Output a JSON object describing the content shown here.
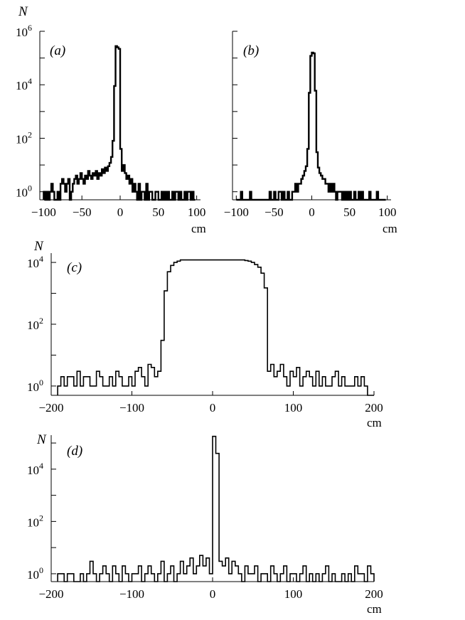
{
  "chart_data": [
    {
      "id": "a",
      "type": "histogram",
      "panel_label": "(a)",
      "ylabel": "N",
      "xlabel": "cm",
      "y_scale": "log",
      "ylim": [
        0.5,
        1000000
      ],
      "xlim": [
        -105,
        105
      ],
      "x_ticks": [
        -100,
        -50,
        0,
        50,
        100
      ],
      "x_tick_labels": [
        "−100",
        "−50",
        "0",
        "50",
        "100"
      ],
      "y_ticks": [
        1,
        100,
        10000,
        1000000
      ],
      "y_tick_labels": [
        {
          "base": "10",
          "exp": "0"
        },
        {
          "base": "10",
          "exp": "2"
        },
        {
          "base": "10",
          "exp": "4"
        },
        {
          "base": "10",
          "exp": "6"
        }
      ],
      "bin_width": 2,
      "bins_x": [
        -100,
        -98,
        -96,
        -94,
        -92,
        -90,
        -88,
        -86,
        -84,
        -82,
        -80,
        -78,
        -76,
        -74,
        -72,
        -70,
        -68,
        -66,
        -64,
        -62,
        -60,
        -58,
        -56,
        -54,
        -52,
        -50,
        -48,
        -46,
        -44,
        -42,
        -40,
        -38,
        -36,
        -34,
        -32,
        -30,
        -28,
        -26,
        -24,
        -22,
        -20,
        -18,
        -16,
        -14,
        -12,
        -10,
        -8,
        -6,
        -4,
        -2,
        0,
        2,
        4,
        6,
        8,
        10,
        12,
        14,
        16,
        18,
        20,
        22,
        24,
        26,
        28,
        30,
        32,
        34,
        36,
        38,
        40,
        42,
        44,
        46,
        48,
        50,
        52,
        54,
        56,
        58,
        60,
        62,
        64,
        66,
        68,
        70,
        72,
        74,
        76,
        78,
        80,
        82,
        84,
        86,
        88,
        90,
        92,
        94,
        96
      ],
      "counts": [
        1,
        0,
        1,
        0,
        1,
        2,
        1,
        0,
        0,
        1,
        0,
        2,
        3,
        2,
        1,
        2,
        3,
        0,
        1,
        2,
        3,
        4,
        2,
        3,
        5,
        3,
        2,
        4,
        3,
        6,
        4,
        3,
        5,
        4,
        6,
        3,
        5,
        4,
        7,
        5,
        8,
        6,
        9,
        12,
        20,
        80,
        9000,
        280000,
        250000,
        220000,
        40,
        6,
        10,
        5,
        3,
        4,
        2,
        3,
        1,
        2,
        1,
        0,
        2,
        0,
        1,
        1,
        0,
        2,
        0,
        1,
        1,
        0,
        0,
        1,
        1,
        0,
        0,
        1,
        0,
        1,
        0,
        1,
        0,
        0,
        1,
        0,
        1,
        1,
        0,
        1,
        0,
        0,
        1,
        0,
        1,
        1,
        0,
        1,
        0
      ]
    },
    {
      "id": "b",
      "type": "histogram",
      "panel_label": "(b)",
      "ylabel": "",
      "xlabel": "cm",
      "y_scale": "log",
      "ylim": [
        0.5,
        1000000
      ],
      "xlim": [
        -105,
        105
      ],
      "x_ticks": [
        -100,
        -50,
        0,
        50,
        100
      ],
      "x_tick_labels": [
        "−100",
        "−50",
        "0",
        "50",
        "100"
      ],
      "y_ticks": [
        1,
        100,
        10000,
        1000000
      ],
      "y_tick_labels": [],
      "bin_width": 2,
      "bins_x": [
        -100,
        -98,
        -96,
        -94,
        -92,
        -90,
        -88,
        -86,
        -84,
        -82,
        -80,
        -78,
        -76,
        -74,
        -72,
        -70,
        -68,
        -66,
        -64,
        -62,
        -60,
        -58,
        -56,
        -54,
        -52,
        -50,
        -48,
        -46,
        -44,
        -42,
        -40,
        -38,
        -36,
        -34,
        -32,
        -30,
        -28,
        -26,
        -24,
        -22,
        -20,
        -18,
        -16,
        -14,
        -12,
        -10,
        -8,
        -6,
        -4,
        -2,
        0,
        2,
        4,
        6,
        8,
        10,
        12,
        14,
        16,
        18,
        20,
        22,
        24,
        26,
        28,
        30,
        32,
        34,
        36,
        38,
        40,
        42,
        44,
        46,
        48,
        50,
        52,
        54,
        56,
        58,
        60,
        62,
        64,
        66,
        68,
        70,
        72,
        74,
        76,
        78,
        80,
        82,
        84,
        86,
        88,
        90,
        92,
        94,
        96
      ],
      "counts": [
        0,
        0,
        0,
        1,
        0,
        0,
        0,
        0,
        0,
        1,
        0,
        0,
        0,
        0,
        0,
        0,
        0,
        0,
        0,
        0,
        0,
        0,
        1,
        0,
        0,
        1,
        0,
        0,
        1,
        1,
        0,
        1,
        0,
        0,
        1,
        0,
        0,
        1,
        1,
        2,
        1,
        2,
        2,
        3,
        4,
        6,
        9,
        40,
        5000,
        120000,
        160000,
        150000,
        6000,
        30,
        8,
        5,
        4,
        3,
        3,
        2,
        2,
        1,
        2,
        1,
        2,
        1,
        0,
        1,
        1,
        1,
        0,
        1,
        0,
        1,
        0,
        1,
        0,
        0,
        1,
        0,
        0,
        1,
        0,
        1,
        0,
        0,
        0,
        0,
        1,
        0,
        0,
        0,
        0,
        1,
        0,
        0,
        0,
        0,
        0
      ],
      "y_ticklabels_shown": false
    },
    {
      "id": "c",
      "type": "histogram",
      "panel_label": "(c)",
      "ylabel": "N",
      "xlabel": "cm",
      "y_scale": "log",
      "ylim": [
        0.5,
        20000
      ],
      "xlim": [
        -200,
        200
      ],
      "x_ticks": [
        -200,
        -100,
        0,
        100,
        200
      ],
      "x_tick_labels": [
        "−200",
        "−100",
        "0",
        "100",
        "200"
      ],
      "y_ticks": [
        1,
        100,
        10000
      ],
      "y_tick_labels": [
        {
          "base": "10",
          "exp": "0"
        },
        {
          "base": "10",
          "exp": "2"
        },
        {
          "base": "10",
          "exp": "4"
        }
      ],
      "bin_width": 4,
      "bins_x": [
        -192,
        -188,
        -184,
        -180,
        -176,
        -172,
        -168,
        -164,
        -160,
        -156,
        -152,
        -148,
        -144,
        -140,
        -136,
        -132,
        -128,
        -124,
        -120,
        -116,
        -112,
        -108,
        -104,
        -100,
        -96,
        -92,
        -88,
        -84,
        -80,
        -76,
        -72,
        -68,
        -64,
        -60,
        -56,
        -52,
        -48,
        -44,
        -40,
        -36,
        -32,
        -28,
        -24,
        -20,
        -16,
        -12,
        -8,
        -4,
        0,
        4,
        8,
        12,
        16,
        20,
        24,
        28,
        32,
        36,
        40,
        44,
        48,
        52,
        56,
        60,
        64,
        68,
        72,
        76,
        80,
        84,
        88,
        92,
        96,
        100,
        104,
        108,
        112,
        116,
        120,
        124,
        128,
        132,
        136,
        140,
        144,
        148,
        152,
        156,
        160,
        164,
        168,
        172,
        176,
        180,
        184,
        188,
        192,
        196
      ],
      "counts": [
        1,
        2,
        1,
        2,
        2,
        1,
        3,
        1,
        2,
        2,
        1,
        1,
        3,
        2,
        1,
        1,
        2,
        1,
        3,
        2,
        1,
        1,
        2,
        1,
        3,
        4,
        2,
        1,
        5,
        4,
        2,
        3,
        30,
        1200,
        5000,
        8000,
        10000,
        11000,
        12000,
        12000,
        12000,
        12000,
        12000,
        12000,
        12000,
        12000,
        12000,
        12000,
        12000,
        12000,
        12000,
        12000,
        12000,
        12000,
        12000,
        12000,
        12000,
        12000,
        11500,
        11000,
        10000,
        8500,
        7000,
        4500,
        1500,
        3,
        5,
        2,
        3,
        5,
        2,
        1,
        3,
        2,
        4,
        1,
        2,
        3,
        2,
        1,
        3,
        1,
        2,
        1,
        1,
        2,
        3,
        1,
        2,
        1,
        1,
        1,
        2,
        1,
        2,
        1
      ]
    },
    {
      "id": "d",
      "type": "histogram",
      "panel_label": "(d)",
      "ylabel": "N",
      "xlabel": "cm",
      "y_scale": "log",
      "ylim": [
        0.5,
        200000
      ],
      "xlim": [
        -200,
        200
      ],
      "x_ticks": [
        -200,
        -100,
        0,
        100,
        200
      ],
      "x_tick_labels": [
        "−200",
        "−100",
        "0",
        "100",
        "200"
      ],
      "y_ticks": [
        1,
        100,
        10000
      ],
      "y_tick_labels": [
        {
          "base": "10",
          "exp": "0"
        },
        {
          "base": "10",
          "exp": "2"
        },
        {
          "base": "10",
          "exp": "4"
        }
      ],
      "bin_width": 4,
      "bins_x": [
        -192,
        -188,
        -184,
        -180,
        -176,
        -172,
        -168,
        -164,
        -160,
        -156,
        -152,
        -148,
        -144,
        -140,
        -136,
        -132,
        -128,
        -124,
        -120,
        -116,
        -112,
        -108,
        -104,
        -100,
        -96,
        -92,
        -88,
        -84,
        -80,
        -76,
        -72,
        -68,
        -64,
        -60,
        -56,
        -52,
        -48,
        -44,
        -40,
        -36,
        -32,
        -28,
        -24,
        -20,
        -16,
        -12,
        -8,
        -4,
        0,
        4,
        8,
        12,
        16,
        20,
        24,
        28,
        32,
        36,
        40,
        44,
        48,
        52,
        56,
        60,
        64,
        68,
        72,
        76,
        80,
        84,
        88,
        92,
        96,
        100,
        104,
        108,
        112,
        116,
        120,
        124,
        128,
        132,
        136,
        140,
        144,
        148,
        152,
        156,
        160,
        164,
        168,
        172,
        176,
        180,
        184,
        188,
        192,
        196
      ],
      "counts": [
        1,
        1,
        0,
        1,
        1,
        0,
        0,
        1,
        0,
        1,
        3,
        1,
        0,
        1,
        2,
        1,
        0,
        2,
        1,
        0,
        2,
        1,
        0,
        1,
        1,
        2,
        0,
        1,
        2,
        1,
        0,
        1,
        3,
        0,
        1,
        2,
        0,
        1,
        3,
        1,
        2,
        4,
        1,
        2,
        5,
        2,
        4,
        1,
        180000,
        40000,
        3,
        2,
        4,
        1,
        3,
        2,
        1,
        0,
        2,
        1,
        1,
        2,
        0,
        1,
        1,
        0,
        2,
        1,
        0,
        1,
        2,
        0,
        1,
        1,
        0,
        1,
        2,
        0,
        1,
        0,
        1,
        0,
        1,
        2,
        0,
        1,
        0,
        0,
        1,
        0,
        1,
        0,
        2,
        1,
        1,
        0,
        2,
        1
      ]
    }
  ]
}
